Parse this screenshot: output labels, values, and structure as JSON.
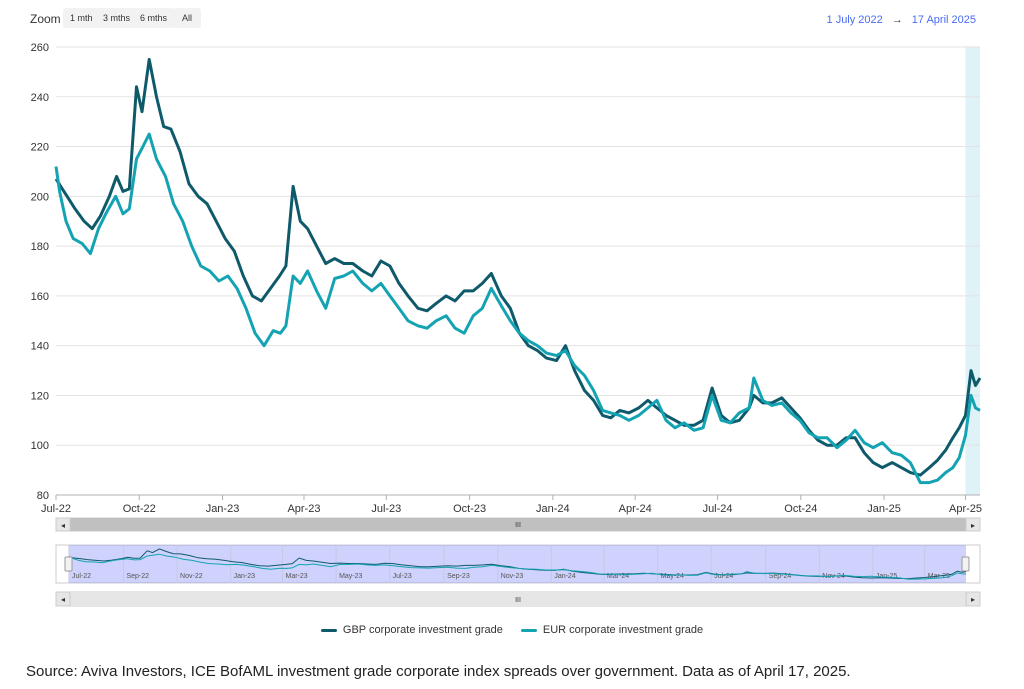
{
  "toolbar": {
    "zoom_label": "Zoom",
    "zoom_buttons": [
      "1 mth",
      "3 mths",
      "6 mths",
      "All"
    ],
    "date_from": "1 July 2022",
    "date_arrow": "→",
    "date_to": "17 April 2025"
  },
  "chart_data": {
    "type": "line",
    "x_start": "2022-07-01",
    "x_end": "2025-04-17",
    "ylim": [
      80,
      260
    ],
    "yticks": [
      80,
      100,
      120,
      140,
      160,
      180,
      200,
      220,
      240,
      260
    ],
    "xticks": [
      "Jul-22",
      "Oct-22",
      "Jan-23",
      "Apr-23",
      "Jul-23",
      "Oct-23",
      "Jan-24",
      "Apr-24",
      "Jul-24",
      "Oct-24",
      "Jan-25",
      "Apr-25"
    ],
    "xtick_dates": [
      "2022-07-01",
      "2022-10-01",
      "2023-01-01",
      "2023-04-01",
      "2023-07-01",
      "2023-10-01",
      "2024-01-01",
      "2024-04-01",
      "2024-07-01",
      "2024-10-01",
      "2025-01-01",
      "2025-04-01"
    ],
    "navigator_ticks": [
      "Jul-22",
      "Sep-22",
      "Nov-22",
      "Jan-23",
      "Mar-23",
      "May-23",
      "Jul-23",
      "Sep-23",
      "Nov-23",
      "Jan-24",
      "Mar-24",
      "May-24",
      "Jul-24",
      "Sep-24",
      "Nov-24",
      "Jan-25",
      "Mar-25"
    ],
    "navigator_tick_dates": [
      "2022-07-01",
      "2022-09-01",
      "2022-11-01",
      "2023-01-01",
      "2023-03-01",
      "2023-05-01",
      "2023-07-01",
      "2023-09-01",
      "2023-11-01",
      "2024-01-01",
      "2024-03-01",
      "2024-05-01",
      "2024-07-01",
      "2024-09-01",
      "2024-11-01",
      "2025-01-01",
      "2025-03-01"
    ],
    "highlight_range": [
      "2025-04-01",
      "2025-04-17"
    ],
    "grid": true,
    "legend_position": "bottom-center",
    "series": [
      {
        "name": "GBP corporate investment grade",
        "color": "#0e5a6b",
        "points": [
          [
            "2022-07-01",
            207
          ],
          [
            "2022-07-08",
            203
          ],
          [
            "2022-07-15",
            199
          ],
          [
            "2022-07-22",
            195
          ],
          [
            "2022-08-01",
            190
          ],
          [
            "2022-08-10",
            187
          ],
          [
            "2022-08-19",
            192
          ],
          [
            "2022-08-29",
            200
          ],
          [
            "2022-09-06",
            208
          ],
          [
            "2022-09-13",
            202
          ],
          [
            "2022-09-20",
            203
          ],
          [
            "2022-09-28",
            244
          ],
          [
            "2022-10-04",
            234
          ],
          [
            "2022-10-12",
            255
          ],
          [
            "2022-10-20",
            240
          ],
          [
            "2022-10-28",
            228
          ],
          [
            "2022-11-05",
            227
          ],
          [
            "2022-11-15",
            218
          ],
          [
            "2022-11-25",
            205
          ],
          [
            "2022-12-05",
            200
          ],
          [
            "2022-12-15",
            197
          ],
          [
            "2022-12-25",
            190
          ],
          [
            "2023-01-04",
            183
          ],
          [
            "2023-01-14",
            178
          ],
          [
            "2023-01-24",
            168
          ],
          [
            "2023-02-03",
            160
          ],
          [
            "2023-02-13",
            158
          ],
          [
            "2023-02-23",
            163
          ],
          [
            "2023-03-05",
            168
          ],
          [
            "2023-03-12",
            172
          ],
          [
            "2023-03-20",
            204
          ],
          [
            "2023-03-28",
            190
          ],
          [
            "2023-04-05",
            187
          ],
          [
            "2023-04-15",
            180
          ],
          [
            "2023-04-25",
            173
          ],
          [
            "2023-05-05",
            175
          ],
          [
            "2023-05-15",
            173
          ],
          [
            "2023-05-25",
            173
          ],
          [
            "2023-06-05",
            170
          ],
          [
            "2023-06-15",
            168
          ],
          [
            "2023-06-25",
            174
          ],
          [
            "2023-07-05",
            172
          ],
          [
            "2023-07-15",
            165
          ],
          [
            "2023-07-25",
            160
          ],
          [
            "2023-08-05",
            155
          ],
          [
            "2023-08-15",
            154
          ],
          [
            "2023-08-25",
            157
          ],
          [
            "2023-09-05",
            160
          ],
          [
            "2023-09-15",
            158
          ],
          [
            "2023-09-25",
            162
          ],
          [
            "2023-10-05",
            162
          ],
          [
            "2023-10-15",
            165
          ],
          [
            "2023-10-25",
            169
          ],
          [
            "2023-11-05",
            160
          ],
          [
            "2023-11-15",
            155
          ],
          [
            "2023-11-25",
            145
          ],
          [
            "2023-12-05",
            140
          ],
          [
            "2023-12-15",
            138
          ],
          [
            "2023-12-25",
            135
          ],
          [
            "2024-01-05",
            134
          ],
          [
            "2024-01-15",
            140
          ],
          [
            "2024-01-25",
            130
          ],
          [
            "2024-02-05",
            122
          ],
          [
            "2024-02-15",
            118
          ],
          [
            "2024-02-25",
            112
          ],
          [
            "2024-03-05",
            111
          ],
          [
            "2024-03-15",
            114
          ],
          [
            "2024-03-25",
            113
          ],
          [
            "2024-04-05",
            115
          ],
          [
            "2024-04-15",
            118
          ],
          [
            "2024-04-25",
            115
          ],
          [
            "2024-05-05",
            112
          ],
          [
            "2024-05-15",
            110
          ],
          [
            "2024-05-25",
            108
          ],
          [
            "2024-06-05",
            108
          ],
          [
            "2024-06-15",
            110
          ],
          [
            "2024-06-25",
            123
          ],
          [
            "2024-07-05",
            112
          ],
          [
            "2024-07-15",
            109
          ],
          [
            "2024-07-25",
            110
          ],
          [
            "2024-08-05",
            115
          ],
          [
            "2024-08-10",
            120
          ],
          [
            "2024-08-20",
            117
          ],
          [
            "2024-08-30",
            117
          ],
          [
            "2024-09-10",
            119
          ],
          [
            "2024-09-20",
            115
          ],
          [
            "2024-09-30",
            111
          ],
          [
            "2024-10-10",
            106
          ],
          [
            "2024-10-20",
            102
          ],
          [
            "2024-10-30",
            100
          ],
          [
            "2024-11-10",
            100
          ],
          [
            "2024-11-20",
            103
          ],
          [
            "2024-11-30",
            103
          ],
          [
            "2024-12-10",
            97
          ],
          [
            "2024-12-20",
            93
          ],
          [
            "2024-12-30",
            91
          ],
          [
            "2025-01-10",
            93
          ],
          [
            "2025-01-20",
            91
          ],
          [
            "2025-01-30",
            89
          ],
          [
            "2025-02-10",
            88
          ],
          [
            "2025-02-20",
            91
          ],
          [
            "2025-03-01",
            94
          ],
          [
            "2025-03-10",
            98
          ],
          [
            "2025-03-18",
            103
          ],
          [
            "2025-03-25",
            107
          ],
          [
            "2025-04-01",
            112
          ],
          [
            "2025-04-07",
            130
          ],
          [
            "2025-04-12",
            124
          ],
          [
            "2025-04-17",
            127
          ]
        ]
      },
      {
        "name": "EUR corporate investment grade",
        "color": "#14a3b3",
        "points": [
          [
            "2022-07-01",
            212
          ],
          [
            "2022-07-05",
            202
          ],
          [
            "2022-07-12",
            190
          ],
          [
            "2022-07-20",
            183
          ],
          [
            "2022-07-30",
            181
          ],
          [
            "2022-08-08",
            177
          ],
          [
            "2022-08-17",
            187
          ],
          [
            "2022-08-25",
            193
          ],
          [
            "2022-09-05",
            200
          ],
          [
            "2022-09-13",
            193
          ],
          [
            "2022-09-20",
            195
          ],
          [
            "2022-09-28",
            215
          ],
          [
            "2022-10-05",
            220
          ],
          [
            "2022-10-12",
            225
          ],
          [
            "2022-10-20",
            215
          ],
          [
            "2022-10-30",
            208
          ],
          [
            "2022-11-08",
            197
          ],
          [
            "2022-11-18",
            190
          ],
          [
            "2022-11-28",
            180
          ],
          [
            "2022-12-08",
            172
          ],
          [
            "2022-12-18",
            170
          ],
          [
            "2022-12-28",
            166
          ],
          [
            "2023-01-07",
            168
          ],
          [
            "2023-01-17",
            163
          ],
          [
            "2023-01-27",
            155
          ],
          [
            "2023-02-06",
            145
          ],
          [
            "2023-02-16",
            140
          ],
          [
            "2023-02-26",
            146
          ],
          [
            "2023-03-06",
            145
          ],
          [
            "2023-03-12",
            148
          ],
          [
            "2023-03-20",
            168
          ],
          [
            "2023-03-28",
            165
          ],
          [
            "2023-04-05",
            170
          ],
          [
            "2023-04-15",
            162
          ],
          [
            "2023-04-25",
            155
          ],
          [
            "2023-05-05",
            167
          ],
          [
            "2023-05-15",
            168
          ],
          [
            "2023-05-25",
            170
          ],
          [
            "2023-06-05",
            165
          ],
          [
            "2023-06-15",
            162
          ],
          [
            "2023-06-25",
            165
          ],
          [
            "2023-07-05",
            160
          ],
          [
            "2023-07-15",
            155
          ],
          [
            "2023-07-25",
            150
          ],
          [
            "2023-08-05",
            148
          ],
          [
            "2023-08-15",
            147
          ],
          [
            "2023-08-25",
            150
          ],
          [
            "2023-09-05",
            152
          ],
          [
            "2023-09-15",
            147
          ],
          [
            "2023-09-25",
            145
          ],
          [
            "2023-10-05",
            152
          ],
          [
            "2023-10-15",
            155
          ],
          [
            "2023-10-25",
            163
          ],
          [
            "2023-11-05",
            156
          ],
          [
            "2023-11-15",
            150
          ],
          [
            "2023-11-25",
            145
          ],
          [
            "2023-12-05",
            142
          ],
          [
            "2023-12-15",
            140
          ],
          [
            "2023-12-25",
            137
          ],
          [
            "2024-01-05",
            136
          ],
          [
            "2024-01-15",
            138
          ],
          [
            "2024-01-25",
            132
          ],
          [
            "2024-02-05",
            128
          ],
          [
            "2024-02-15",
            122
          ],
          [
            "2024-02-25",
            114
          ],
          [
            "2024-03-05",
            113
          ],
          [
            "2024-03-15",
            112
          ],
          [
            "2024-03-25",
            110
          ],
          [
            "2024-04-05",
            112
          ],
          [
            "2024-04-15",
            115
          ],
          [
            "2024-04-25",
            118
          ],
          [
            "2024-05-05",
            110
          ],
          [
            "2024-05-15",
            107
          ],
          [
            "2024-05-25",
            109
          ],
          [
            "2024-06-05",
            106
          ],
          [
            "2024-06-15",
            107
          ],
          [
            "2024-06-25",
            120
          ],
          [
            "2024-07-05",
            110
          ],
          [
            "2024-07-15",
            109
          ],
          [
            "2024-07-25",
            113
          ],
          [
            "2024-08-05",
            115
          ],
          [
            "2024-08-10",
            127
          ],
          [
            "2024-08-20",
            118
          ],
          [
            "2024-08-30",
            116
          ],
          [
            "2024-09-10",
            117
          ],
          [
            "2024-09-20",
            113
          ],
          [
            "2024-09-30",
            110
          ],
          [
            "2024-10-10",
            105
          ],
          [
            "2024-10-20",
            103
          ],
          [
            "2024-10-30",
            103
          ],
          [
            "2024-11-10",
            99
          ],
          [
            "2024-11-20",
            102
          ],
          [
            "2024-11-30",
            106
          ],
          [
            "2024-12-10",
            101
          ],
          [
            "2024-12-20",
            99
          ],
          [
            "2024-12-30",
            101
          ],
          [
            "2025-01-10",
            97
          ],
          [
            "2025-01-20",
            96
          ],
          [
            "2025-01-30",
            93
          ],
          [
            "2025-02-10",
            85
          ],
          [
            "2025-02-20",
            85
          ],
          [
            "2025-03-01",
            86
          ],
          [
            "2025-03-10",
            89
          ],
          [
            "2025-03-18",
            91
          ],
          [
            "2025-03-25",
            95
          ],
          [
            "2025-04-01",
            104
          ],
          [
            "2025-04-07",
            120
          ],
          [
            "2025-04-12",
            115
          ],
          [
            "2025-04-17",
            114
          ]
        ]
      }
    ]
  },
  "scrollbar": {
    "grip": "III",
    "left_arrow": "◂",
    "right_arrow": "▸"
  },
  "legend": {
    "gbp_label": "GBP corporate investment grade",
    "eur_label": "EUR corporate investment grade",
    "gbp_color": "#0e5a6b",
    "eur_color": "#14a3b3"
  },
  "source_text": "Source: Aviva Investors, ICE BofAML investment grade corporate index spreads over government. Data as of April 17, 2025."
}
